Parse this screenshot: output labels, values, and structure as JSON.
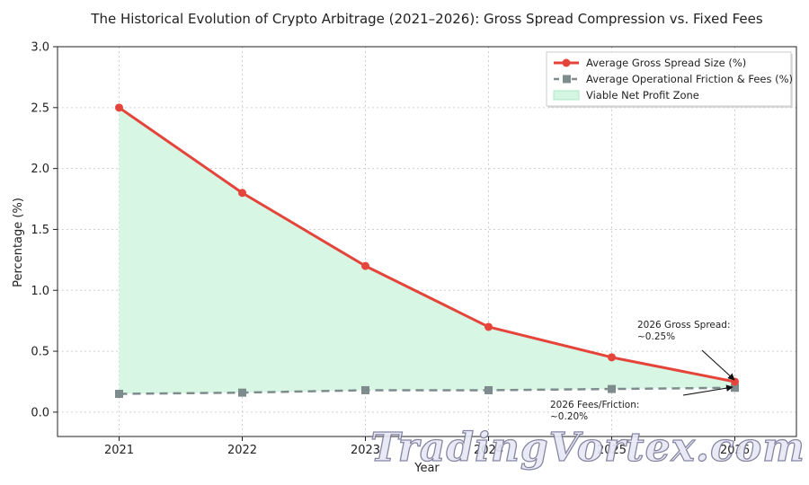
{
  "chart_data": {
    "type": "line",
    "title": "The Historical Evolution of Crypto Arbitrage (2021–2026): Gross Spread Compression vs. Fixed Fees",
    "xlabel": "Year",
    "ylabel": "Percentage (%)",
    "x": [
      2021,
      2022,
      2023,
      2024,
      2025,
      2026
    ],
    "x_tick_labels": [
      "2021",
      "2022",
      "2023",
      "2024",
      "2025",
      "2026"
    ],
    "y_ticks": [
      0.0,
      0.5,
      1.0,
      1.5,
      2.0,
      2.5,
      3.0
    ],
    "y_tick_labels": [
      "0.0",
      "0.5",
      "1.0",
      "1.5",
      "2.0",
      "2.5",
      "3.0"
    ],
    "ylim": [
      -0.2,
      3.0
    ],
    "xlim": [
      2020.5,
      2026.5
    ],
    "grid": true,
    "legend_position": "top-right",
    "series": [
      {
        "name": "Average Gross Spread Size (%)",
        "values": [
          2.5,
          1.8,
          1.2,
          0.7,
          0.45,
          0.25
        ],
        "color": "#e4443a",
        "style": "solid",
        "marker": "circle"
      },
      {
        "name": "Average Operational Friction & Fees (%)",
        "values": [
          0.15,
          0.16,
          0.18,
          0.18,
          0.19,
          0.2
        ],
        "color": "#7f8c8d",
        "style": "dashed",
        "marker": "square"
      }
    ],
    "fill_area": {
      "name": "Viable Net Profit Zone",
      "color": "#d5f5e3",
      "edge_color": "#abebc6"
    },
    "annotations": [
      {
        "lines": [
          "2026 Gross Spread:",
          "~0.25%"
        ],
        "x": 2026,
        "y": 0.25
      },
      {
        "lines": [
          "2026 Fees/Friction:",
          "~0.20%"
        ],
        "x": 2026,
        "y": 0.2
      }
    ]
  },
  "watermark": "TradingVortex.com"
}
